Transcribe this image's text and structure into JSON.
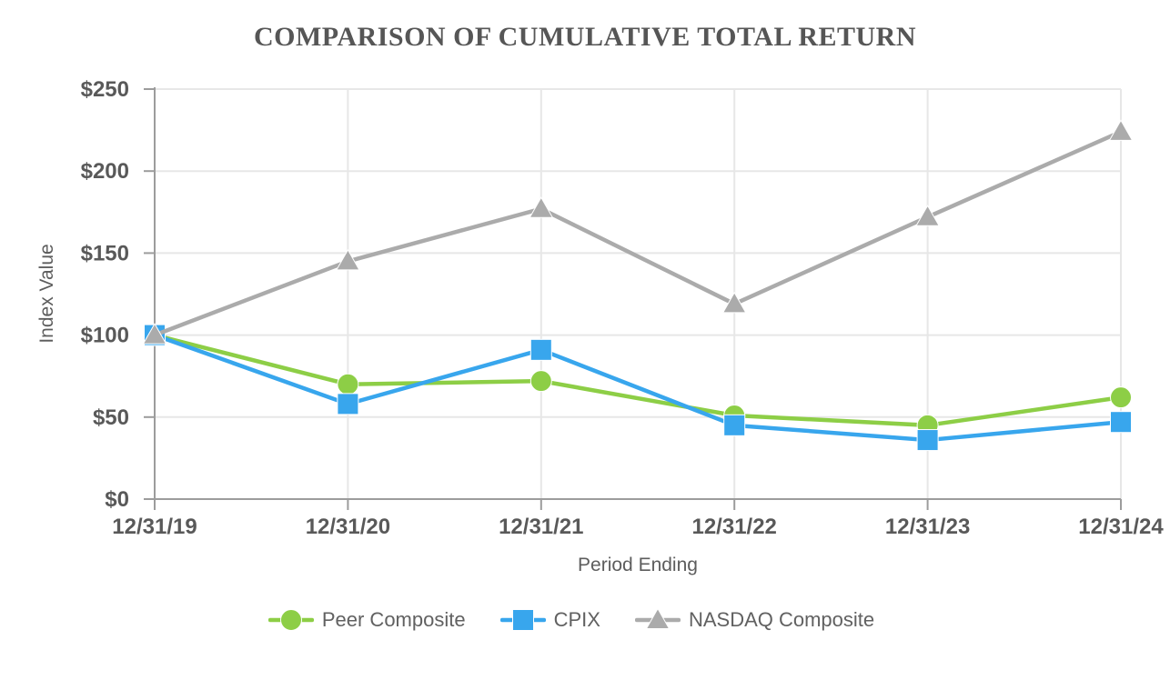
{
  "chart_data": {
    "type": "line",
    "title": "COMPARISON OF CUMULATIVE TOTAL RETURN",
    "xlabel": "Period Ending",
    "ylabel": "Index Value",
    "categories": [
      "12/31/19",
      "12/31/20",
      "12/31/21",
      "12/31/22",
      "12/31/23",
      "12/31/24"
    ],
    "series": [
      {
        "name": "Peer Composite",
        "marker": "circle",
        "color": "#8DCE46",
        "values": [
          100,
          70,
          72,
          51,
          45,
          62
        ]
      },
      {
        "name": "CPIX",
        "marker": "square",
        "color": "#38A6ED",
        "values": [
          100,
          58,
          91,
          45,
          36,
          47
        ]
      },
      {
        "name": "NASDAQ Composite",
        "marker": "triangle",
        "color": "#ABABAB",
        "values": [
          100,
          145,
          177,
          119,
          172,
          224
        ]
      }
    ],
    "ylim": [
      0,
      250
    ],
    "y_ticks": [
      0,
      50,
      100,
      150,
      200,
      250
    ],
    "y_tick_labels": [
      "$0",
      "$50",
      "$100",
      "$150",
      "$200",
      "$250"
    ],
    "grid": true,
    "legend_position": "bottom"
  },
  "colors": {
    "grid": "#E7E7E7",
    "axis": "#9C9C9C",
    "tick_text": "#595959",
    "title_text": "#565656"
  }
}
